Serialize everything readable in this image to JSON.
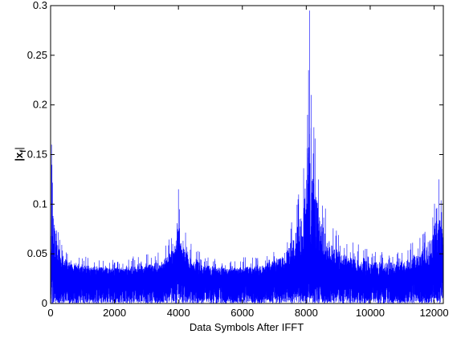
{
  "chart_data": {
    "type": "line",
    "title": "",
    "xlabel": "Data Symbols After IFFT",
    "ylabel_main": "|x",
    "ylabel_sub": "f",
    "ylabel_end": "|",
    "xlim": [
      0,
      12288
    ],
    "ylim": [
      0,
      0.3
    ],
    "xticks": [
      0,
      2000,
      4000,
      6000,
      8000,
      10000,
      12000
    ],
    "yticks": [
      0,
      0.05,
      0.1,
      0.15,
      0.2,
      0.25,
      0.3
    ],
    "xtick_labels": [
      "0",
      "2000",
      "4000",
      "6000",
      "8000",
      "10000",
      "12000"
    ],
    "ytick_labels": [
      "0",
      "0.05",
      "0.1",
      "0.15",
      "0.2",
      "0.25",
      "0.3"
    ],
    "grid": false,
    "series": [
      {
        "color": "#0000ff",
        "n_points": 12288,
        "envelope_x": [
          0,
          30,
          150,
          400,
          600,
          1000,
          2000,
          3000,
          3500,
          3800,
          3950,
          4000,
          4100,
          4400,
          4800,
          5500,
          6500,
          7200,
          7600,
          7900,
          8000,
          8070,
          8100,
          8150,
          8300,
          8500,
          8800,
          9200,
          10000,
          11000,
          11500,
          11800,
          12000,
          12150,
          12288
        ],
        "envelope_y": [
          0.09,
          0.16,
          0.1,
          0.06,
          0.055,
          0.05,
          0.045,
          0.05,
          0.055,
          0.07,
          0.09,
          0.115,
          0.08,
          0.06,
          0.05,
          0.045,
          0.048,
          0.06,
          0.09,
          0.14,
          0.19,
          0.23,
          0.295,
          0.21,
          0.16,
          0.11,
          0.08,
          0.065,
          0.055,
          0.055,
          0.065,
          0.08,
          0.11,
          0.125,
          0.1
        ],
        "baseline_y": [
          0.03,
          0.035,
          0.03,
          0.025,
          0.025,
          0.022,
          0.022,
          0.022,
          0.025,
          0.03,
          0.035,
          0.035,
          0.03,
          0.025,
          0.022,
          0.022,
          0.022,
          0.025,
          0.03,
          0.035,
          0.04,
          0.045,
          0.045,
          0.04,
          0.035,
          0.032,
          0.028,
          0.025,
          0.022,
          0.022,
          0.025,
          0.028,
          0.032,
          0.035,
          0.03
        ]
      }
    ]
  }
}
